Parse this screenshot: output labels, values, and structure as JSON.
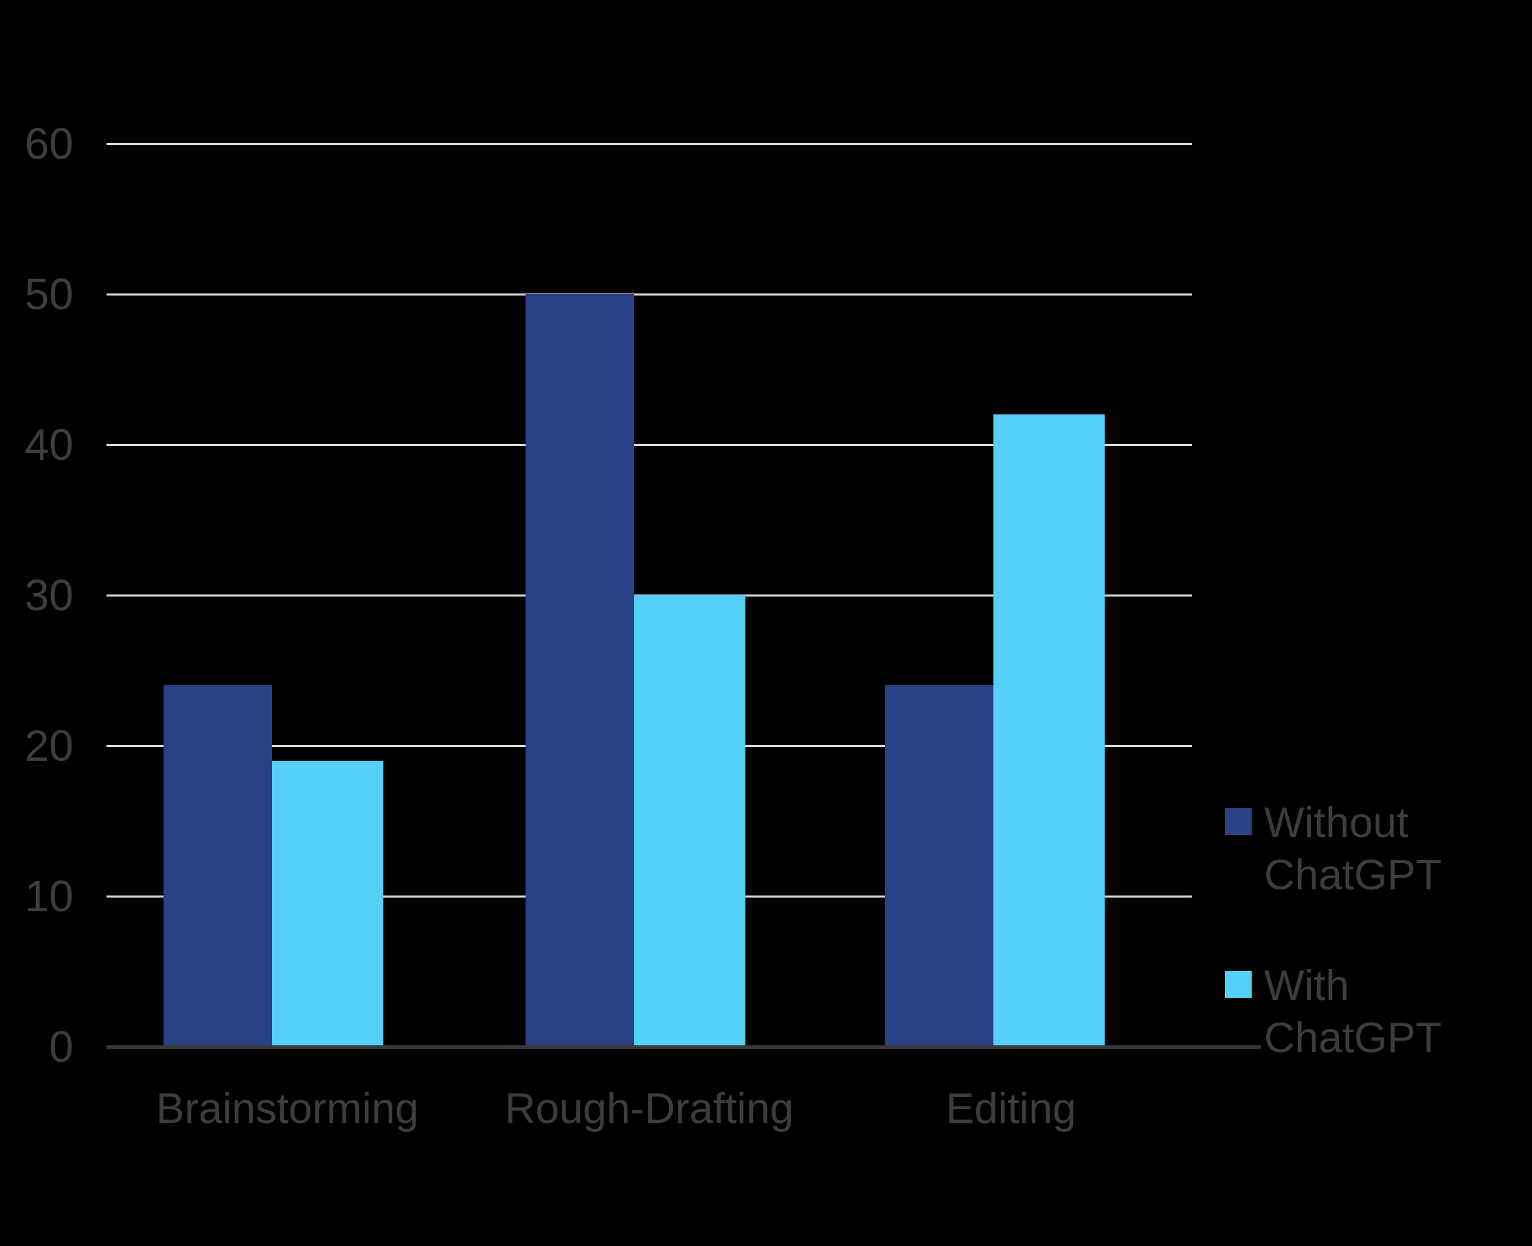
{
  "chart_data": {
    "type": "bar",
    "title": "",
    "xlabel": "",
    "ylabel": "",
    "categories": [
      "Brainstorming",
      "Rough-Drafting",
      "Editing"
    ],
    "series": [
      {
        "name": "Without ChatGPT",
        "color": "#2A4185",
        "values": [
          24,
          50,
          24
        ]
      },
      {
        "name": "With ChatGPT",
        "color": "#54CFF6",
        "values": [
          19,
          30,
          42
        ]
      }
    ],
    "ylim": [
      0,
      60
    ],
    "yticks": [
      0,
      10,
      20,
      30,
      40,
      50,
      60
    ],
    "grid": true,
    "legend_position": "right"
  },
  "colors": {
    "background": "#000000",
    "gridline": "#D9D9D9",
    "axis_line": "#3A3A3A",
    "label_text": "#3D3D3D",
    "series_without": "#2A4185",
    "series_with": "#54CFF6"
  }
}
